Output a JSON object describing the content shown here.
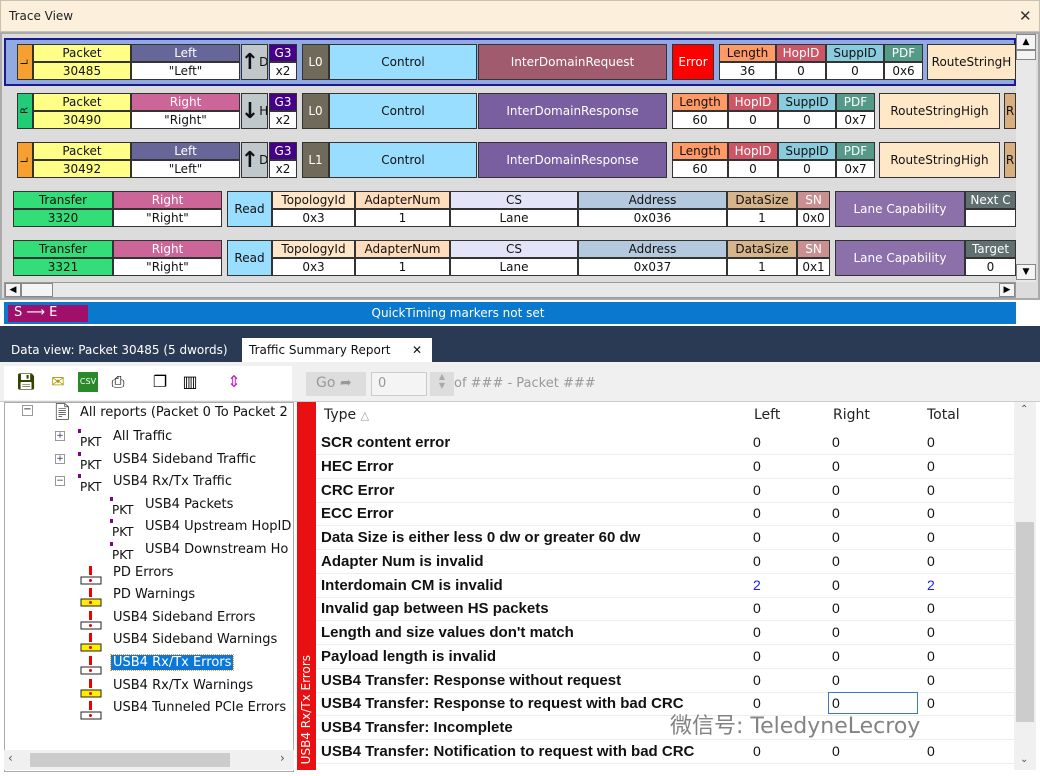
{
  "title": "Trace View",
  "trace_rows": [
    {
      "kind": "packet",
      "tag": "L",
      "type_hdr": "Packet",
      "type_val": "30485",
      "dir_hdr": "Left",
      "dir_val": "\"Left\"",
      "arrow": "up",
      "dir_letter": "D",
      "gen": "G3",
      "width": "x2",
      "lane": "L0",
      "category": "Control",
      "name": "InterDomainRequest",
      "name_color": "#a05c6e",
      "error": "Error",
      "fields": [
        [
          "Length",
          "36"
        ],
        [
          "HopID",
          "0"
        ],
        [
          "SuppID",
          "0"
        ],
        [
          "PDF",
          "0x6"
        ]
      ],
      "route": "RouteStringH",
      "selected": true
    },
    {
      "kind": "packet",
      "tag": "R",
      "type_hdr": "Packet",
      "type_val": "30490",
      "dir_hdr": "Right",
      "dir_val": "\"Right\"",
      "arrow": "down",
      "dir_letter": "H",
      "gen": "G3",
      "width": "x2",
      "lane": "L0",
      "category": "Control",
      "name": "InterDomainResponse",
      "name_color": "#7a5fa0",
      "fields": [
        [
          "Length",
          "60"
        ],
        [
          "HopID",
          "0"
        ],
        [
          "SuppID",
          "0"
        ],
        [
          "PDF",
          "0x7"
        ]
      ],
      "route": "RouteStringHigh",
      "extra": "R"
    },
    {
      "kind": "packet",
      "tag": "L",
      "type_hdr": "Packet",
      "type_val": "30492",
      "dir_hdr": "Left",
      "dir_val": "\"Left\"",
      "arrow": "up",
      "dir_letter": "D",
      "gen": "G3",
      "width": "x2",
      "lane": "L1",
      "category": "Control",
      "name": "InterDomainResponse",
      "name_color": "#7a5fa0",
      "fields": [
        [
          "Length",
          "60"
        ],
        [
          "HopID",
          "0"
        ],
        [
          "SuppID",
          "0"
        ],
        [
          "PDF",
          "0x7"
        ]
      ],
      "route": "RouteStringHigh",
      "extra": "R"
    },
    {
      "kind": "transfer",
      "type_hdr": "Transfer",
      "type_val": "3320",
      "dir_hdr": "Right",
      "dir_val": "\"Right\"",
      "op": "Read",
      "fields": [
        [
          "TopologyId",
          "0x3"
        ],
        [
          "AdapterNum",
          "1"
        ],
        [
          "CS",
          "Lane"
        ],
        [
          "Address",
          "0x036"
        ],
        [
          "DataSize",
          "1"
        ],
        [
          "SN",
          "0x0"
        ]
      ],
      "cap": "Lane Capability",
      "next": "Next C"
    },
    {
      "kind": "transfer",
      "type_hdr": "Transfer",
      "type_val": "3321",
      "dir_hdr": "Right",
      "dir_val": "\"Right\"",
      "op": "Read",
      "fields": [
        [
          "TopologyId",
          "0x3"
        ],
        [
          "AdapterNum",
          "1"
        ],
        [
          "CS",
          "Lane"
        ],
        [
          "Address",
          "0x037"
        ],
        [
          "DataSize",
          "1"
        ],
        [
          "SN",
          "0x1"
        ]
      ],
      "cap": "Lane Capability",
      "next": "Target",
      "next_val": "0"
    }
  ],
  "quicktiming": {
    "badge": "S ⟶ E",
    "message": "QuickTiming markers not set"
  },
  "tabs": [
    {
      "label": "Data view: Packet 30485 (5 dwords)"
    },
    {
      "label": "Traffic Summary Report",
      "close": "✕"
    }
  ],
  "nav": {
    "go": "Go",
    "packet_value": "0",
    "of_text": "of ### - Packet ###"
  },
  "tree": {
    "root": "All reports (Packet 0 To Packet 2",
    "items": [
      {
        "label": "All Traffic",
        "icon": "PKT",
        "level": 1,
        "expander": "+"
      },
      {
        "label": "USB4 Sideband Traffic",
        "icon": "PKT",
        "level": 1,
        "expander": "+"
      },
      {
        "label": "USB4 Rx/Tx Traffic",
        "icon": "PKT",
        "level": 1,
        "expander": "-"
      },
      {
        "label": "USB4 Packets",
        "icon": "PKT",
        "level": 2
      },
      {
        "label": "USB4 Upstream HopID",
        "icon": "PKT",
        "level": 2
      },
      {
        "label": "USB4 Downstream Ho",
        "icon": "PKT",
        "level": 2
      },
      {
        "label": "PD Errors",
        "icon": "error",
        "level": 1
      },
      {
        "label": "PD Warnings",
        "icon": "warning",
        "level": 1
      },
      {
        "label": "USB4 Sideband Errors",
        "icon": "error",
        "level": 1
      },
      {
        "label": "USB4 Sideband Warnings",
        "icon": "warning",
        "level": 1
      },
      {
        "label": "USB4 Rx/Tx Errors",
        "icon": "error",
        "level": 1,
        "selected": true
      },
      {
        "label": "USB4 Rx/Tx Warnings",
        "icon": "warning",
        "level": 1
      },
      {
        "label": "USB4 Tunneled PCIe Errors",
        "icon": "error",
        "level": 1
      }
    ]
  },
  "report": {
    "band_label": "USB4 Rx/Tx Errors",
    "columns": [
      "Type",
      "Left",
      "Right",
      "Total"
    ],
    "rows": [
      [
        "SCR content error",
        "0",
        "0",
        "0"
      ],
      [
        "HEC Error",
        "0",
        "0",
        "0"
      ],
      [
        "CRC Error",
        "0",
        "0",
        "0"
      ],
      [
        "ECC Error",
        "0",
        "0",
        "0"
      ],
      [
        "Data Size is either less 0 dw or greater 60 dw",
        "0",
        "0",
        "0"
      ],
      [
        "Adapter Num is invalid",
        "0",
        "0",
        "0"
      ],
      [
        "Interdomain CM is invalid",
        "2",
        "0",
        "2"
      ],
      [
        "Invalid gap between HS packets",
        "0",
        "0",
        "0"
      ],
      [
        "Length and size values don't match",
        "0",
        "0",
        "0"
      ],
      [
        "Payload length is invalid",
        "0",
        "0",
        "0"
      ],
      [
        "USB4 Transfer: Response without request",
        "0",
        "0",
        "0"
      ],
      [
        "USB4 Transfer: Response to request with bad CRC",
        "0",
        "0",
        "0"
      ],
      [
        "USB4 Transfer: Incomplete",
        "",
        "",
        ""
      ],
      [
        "USB4 Transfer: Notification to request with bad CRC",
        "0",
        "0",
        "0"
      ]
    ],
    "link_color": "#1a1aff"
  },
  "watermark": "微信号: TeledyneLecroy"
}
